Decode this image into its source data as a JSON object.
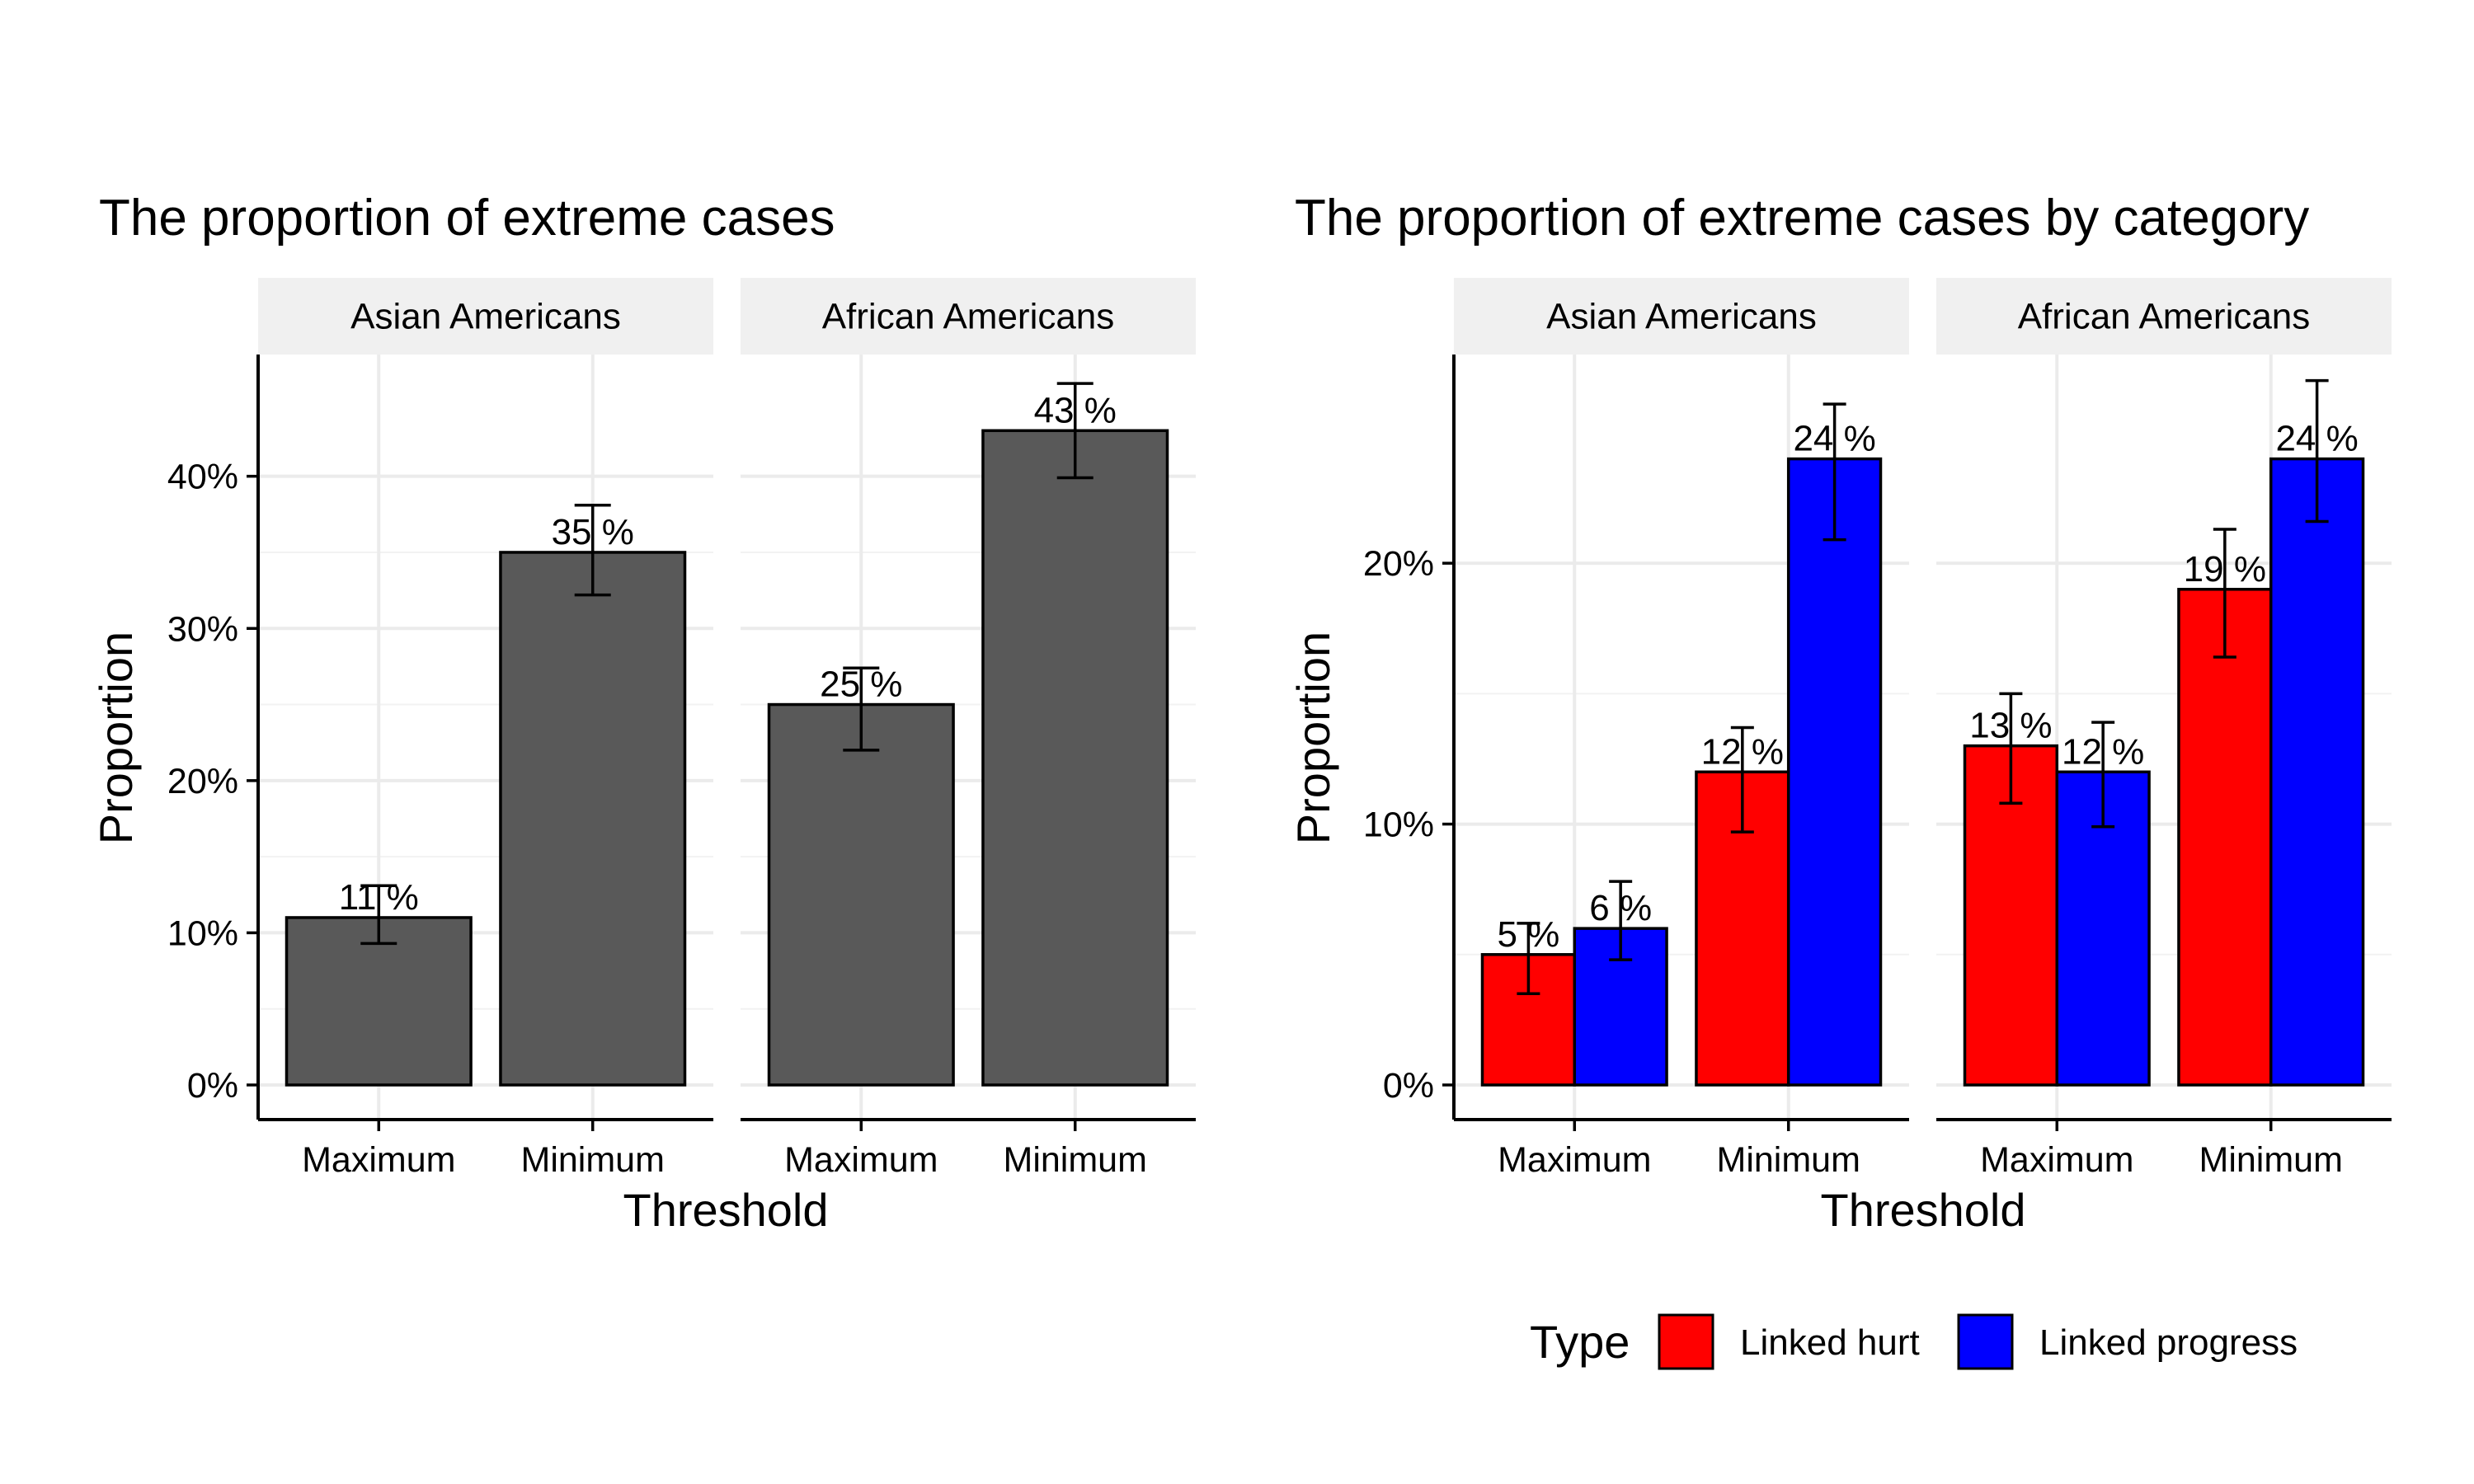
{
  "chart_data": [
    {
      "type": "bar",
      "title": "The proportion of extreme cases",
      "xlabel": "Threshold",
      "ylabel": "Proportion",
      "ylim": [
        0,
        0.48
      ],
      "y_ticks": [
        {
          "value": 0,
          "label": "0%"
        },
        {
          "value": 0.1,
          "label": "10%"
        },
        {
          "value": 0.2,
          "label": "20%"
        },
        {
          "value": 0.3,
          "label": "30%"
        },
        {
          "value": 0.4,
          "label": "40%"
        }
      ],
      "categories": [
        "Maximum",
        "Minimum"
      ],
      "colors": {
        "bar": "#595959"
      },
      "grid": true,
      "facets": [
        {
          "label": "Asian Americans",
          "bars": [
            {
              "category": "Maximum",
              "value": 0.11,
              "lower": 0.093,
              "upper": 0.131,
              "label": "11 %"
            },
            {
              "category": "Minimum",
              "value": 0.35,
              "lower": 0.322,
              "upper": 0.381,
              "label": "35 %"
            }
          ]
        },
        {
          "label": "African Americans",
          "bars": [
            {
              "category": "Maximum",
              "value": 0.25,
              "lower": 0.22,
              "upper": 0.274,
              "label": "25 %"
            },
            {
              "category": "Minimum",
              "value": 0.43,
              "lower": 0.399,
              "upper": 0.461,
              "label": "43 %"
            }
          ]
        }
      ]
    },
    {
      "type": "bar",
      "title": "The proportion of extreme cases by category",
      "xlabel": "Threshold",
      "ylabel": "Proportion",
      "ylim": [
        0,
        0.28
      ],
      "y_ticks": [
        {
          "value": 0,
          "label": "0%"
        },
        {
          "value": 0.1,
          "label": "10%"
        },
        {
          "value": 0.2,
          "label": "20%"
        }
      ],
      "categories": [
        "Maximum",
        "Minimum"
      ],
      "grid": true,
      "legend": {
        "title": "Type",
        "position": "bottom",
        "items": [
          {
            "name": "Linked hurt",
            "color": "#ff0000"
          },
          {
            "name": "Linked progress",
            "color": "#0000ff"
          }
        ]
      },
      "facets": [
        {
          "label": "Asian Americans",
          "groups": [
            {
              "category": "Maximum",
              "bars": [
                {
                  "series": "Linked hurt",
                  "value": 0.05,
                  "lower": 0.035,
                  "upper": 0.062,
                  "label": "5 %"
                },
                {
                  "series": "Linked progress",
                  "value": 0.06,
                  "lower": 0.048,
                  "upper": 0.078,
                  "label": "6 %"
                }
              ]
            },
            {
              "category": "Minimum",
              "bars": [
                {
                  "series": "Linked hurt",
                  "value": 0.12,
                  "lower": 0.097,
                  "upper": 0.137,
                  "label": "12 %"
                },
                {
                  "series": "Linked progress",
                  "value": 0.24,
                  "lower": 0.209,
                  "upper": 0.261,
                  "label": "24 %"
                }
              ]
            }
          ]
        },
        {
          "label": "African Americans",
          "groups": [
            {
              "category": "Maximum",
              "bars": [
                {
                  "series": "Linked hurt",
                  "value": 0.13,
                  "lower": 0.108,
                  "upper": 0.15,
                  "label": "13 %"
                },
                {
                  "series": "Linked progress",
                  "value": 0.12,
                  "lower": 0.099,
                  "upper": 0.139,
                  "label": "12 %"
                }
              ]
            },
            {
              "category": "Minimum",
              "bars": [
                {
                  "series": "Linked hurt",
                  "value": 0.19,
                  "lower": 0.164,
                  "upper": 0.213,
                  "label": "19 %"
                },
                {
                  "series": "Linked progress",
                  "value": 0.24,
                  "lower": 0.216,
                  "upper": 0.27,
                  "label": "24 %"
                }
              ]
            }
          ]
        }
      ]
    }
  ]
}
